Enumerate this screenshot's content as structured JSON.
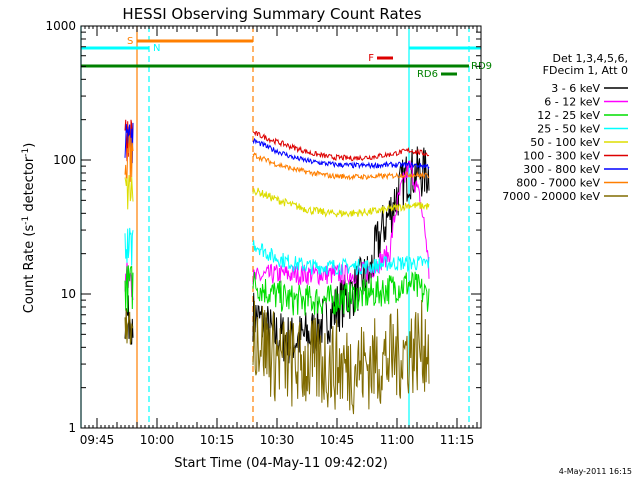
{
  "chart_data": {
    "type": "line",
    "title": "HESSI Observing Summary Count Rates",
    "xlabel": "Start Time (04-May-11 09:42:02)",
    "ylabel_main": "Count Rate (s",
    "ylabel_sup1": "-1",
    "ylabel_mid": " detector",
    "ylabel_sup2": "-1",
    "ylabel_end": ")",
    "yscale": "log",
    "ylim": [
      1,
      1000
    ],
    "xlim": [
      "09:41",
      "11:21"
    ],
    "x_ticks": [
      "09:45",
      "10:00",
      "10:15",
      "10:30",
      "10:45",
      "11:00",
      "11:15"
    ],
    "y_ticks": [
      "1",
      "10",
      "100",
      "1000"
    ],
    "legend_header": [
      "Det 1,3,4,5,6,",
      "FDecim 1, Att 0"
    ],
    "date_stamp": "4-May-2011 16:15",
    "series": [
      {
        "name": "3 - 6 keV",
        "color": "#000000"
      },
      {
        "name": "6 - 12 keV",
        "color": "#ff00ff"
      },
      {
        "name": "12 - 25 keV",
        "color": "#00dd00"
      },
      {
        "name": "25 - 50 keV",
        "color": "#00ffff"
      },
      {
        "name": "50 - 100 keV",
        "color": "#dddd00"
      },
      {
        "name": "100 - 300 keV",
        "color": "#dd0000"
      },
      {
        "name": "300 - 800 keV",
        "color": "#0000ff"
      },
      {
        "name": "800 - 7000 keV",
        "color": "#ff7f00"
      },
      {
        "name": "7000 - 20000 keV",
        "color": "#806b00"
      }
    ],
    "flags": [
      {
        "label": "S",
        "color": "#ff7f00",
        "start": "09:55",
        "end": "10:24"
      },
      {
        "label": "N",
        "color": "#00ffff",
        "start": "09:41",
        "end": "09:58"
      },
      {
        "label": "",
        "color": "#00ffff",
        "start": "11:03",
        "end": "11:21"
      },
      {
        "label": "F",
        "color": "#dd0000",
        "start": "10:55",
        "end": "10:59"
      },
      {
        "label": "RD9",
        "color": "#008000",
        "start": "09:41",
        "end": "11:18"
      },
      {
        "label": "RD6",
        "color": "#008000",
        "start": "11:11",
        "end": "11:15"
      }
    ],
    "night_lines": [
      "09:41",
      "09:58",
      "11:03",
      "11:18"
    ],
    "saa_lines": [
      "09:55",
      "10:24"
    ]
  }
}
